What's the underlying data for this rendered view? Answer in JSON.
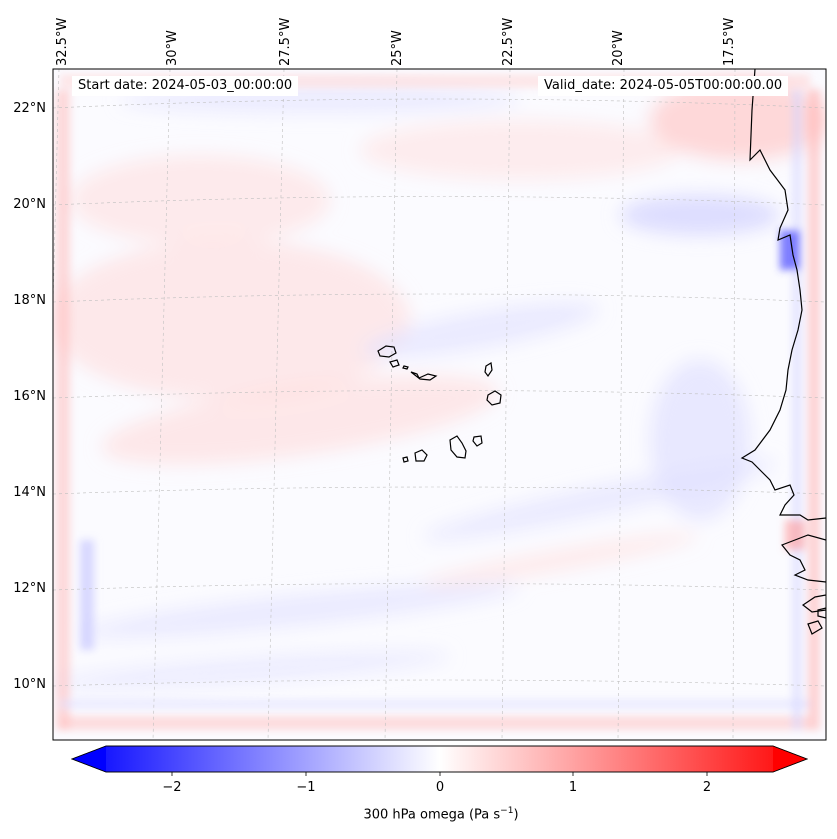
{
  "header": {
    "start_date": "Start date: 2024-05-03_00:00:00",
    "valid_date": "Valid_date: 2024-05-05T00:00:00.00"
  },
  "map": {
    "lon_ticks": [
      "32.5°W",
      "30°W",
      "27.5°W",
      "25°W",
      "22.5°W",
      "20°W",
      "17.5°W"
    ],
    "lat_ticks": [
      "22°N",
      "20°N",
      "18°N",
      "16°N",
      "14°N",
      "12°N",
      "10°N"
    ],
    "field": "300 hPa omega",
    "units": "Pa s^-1",
    "islands": "Cabo Verde",
    "colors": {
      "coast": "#000000",
      "grid": "#bfbfbf",
      "positive": "#ff0000",
      "negative": "#0000ff"
    }
  },
  "colorbar": {
    "ticks": [
      "−2",
      "−1",
      "0",
      "1",
      "2"
    ],
    "range": [
      -2.6,
      2.6
    ],
    "colormap": "bwr",
    "label_main": "300 hPa omega (Pa s",
    "label_sup": "−1",
    "label_end": ")"
  }
}
